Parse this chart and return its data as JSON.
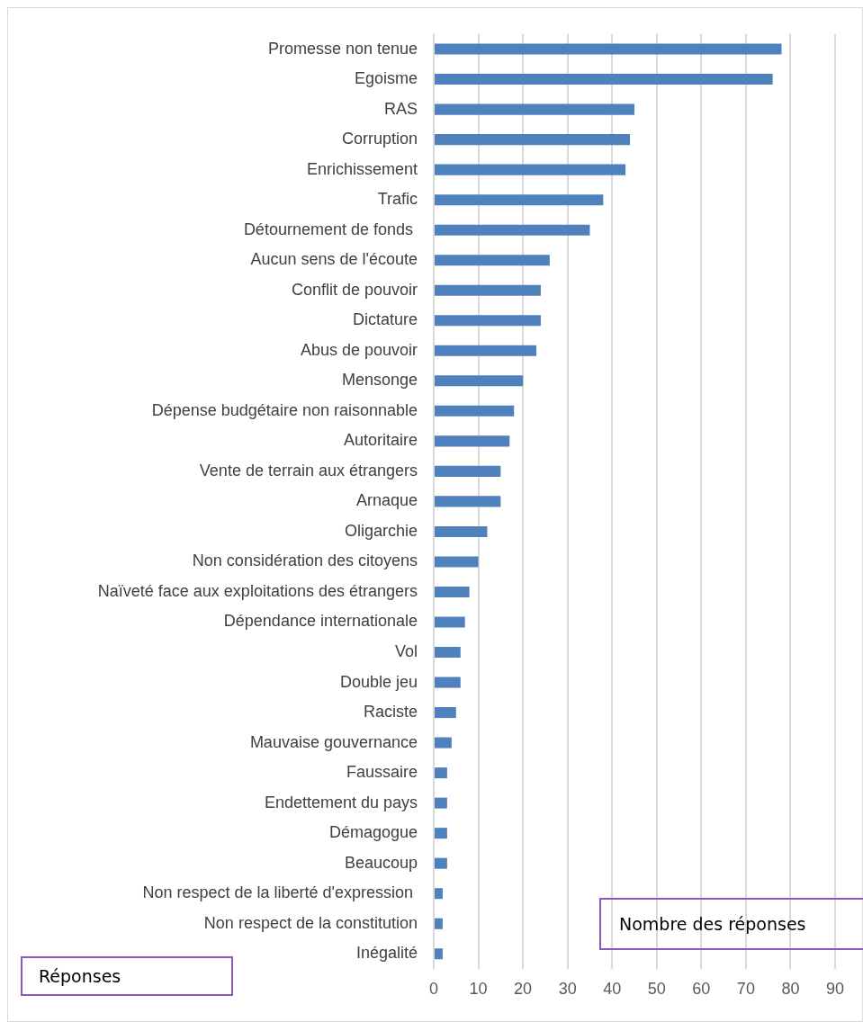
{
  "chart_data": {
    "type": "bar",
    "orientation": "horizontal",
    "xlabel": "Nombre des réponses",
    "ylabel": "Réponses",
    "categories": [
      "Promesse non tenue",
      "Egoisme",
      "RAS",
      "Corruption",
      "Enrichissement",
      "Trafic",
      "Détournement de fonds ",
      "Aucun sens de l'écoute",
      "Conflit de pouvoir",
      "Dictature",
      "Abus de pouvoir",
      "Mensonge",
      "Dépense budgétaire non raisonnable",
      "Autoritaire",
      "Vente de terrain aux étrangers",
      "Arnaque",
      "Oligarchie",
      "Non considération des citoyens",
      "Naïveté face aux exploitations des étrangers",
      "Dépendance internationale",
      "Vol",
      "Double jeu",
      "Raciste",
      "Mauvaise gouvernance",
      "Faussaire",
      "Endettement du pays",
      "Démagogue",
      "Beaucoup",
      "Non respect de la liberté d'expression ",
      "Non respect de la constitution",
      "Inégalité"
    ],
    "values": [
      78,
      76,
      45,
      44,
      43,
      38,
      35,
      26,
      24,
      24,
      23,
      20,
      18,
      17,
      15,
      15,
      12,
      10,
      8,
      7,
      6,
      6,
      5,
      4,
      3,
      3,
      3,
      3,
      2,
      2,
      2
    ],
    "color": "#4f81bd",
    "xlim": [
      0,
      90
    ],
    "xticks": [
      0,
      10,
      20,
      30,
      40,
      50,
      60,
      70,
      80,
      90
    ],
    "grid": "x",
    "legend": false
  }
}
